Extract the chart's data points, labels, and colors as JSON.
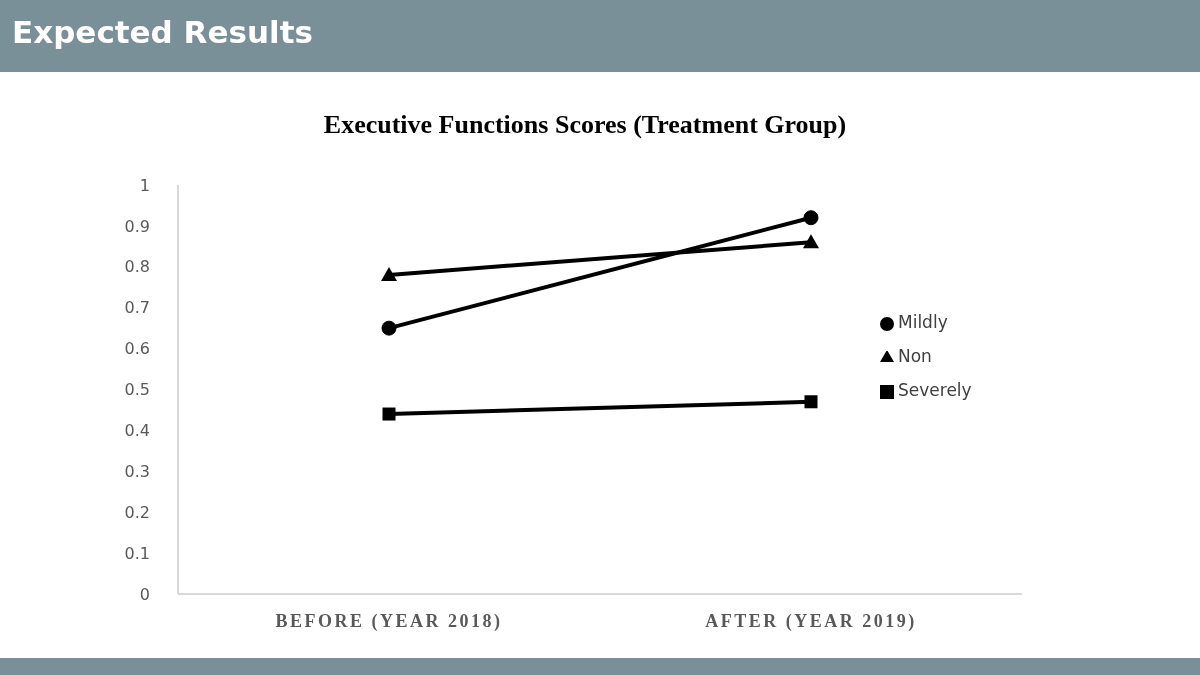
{
  "chart_data": {
    "type": "line",
    "title": "Executive Functions Scores (Treatment Group)",
    "annotations": [
      "Expected Results"
    ],
    "categories": [
      "BEFORE (YEAR 2018)",
      "AFTER (YEAR 2019)"
    ],
    "series": [
      {
        "name": "Mildly",
        "color": "#000000",
        "marker": "circle",
        "values": [
          0.65,
          0.92
        ]
      },
      {
        "name": "Severely",
        "color": "#000000",
        "marker": "square",
        "values": [
          0.44,
          0.47
        ]
      },
      {
        "name": "Non",
        "color": "#000000",
        "marker": "triangle",
        "values": [
          0.78,
          0.86
        ]
      }
    ],
    "ylim": [
      0,
      1
    ],
    "yticks": [
      0,
      0.1,
      0.2,
      0.3,
      0.4,
      0.5,
      0.6,
      0.7,
      0.8,
      0.9,
      1
    ],
    "grid": false,
    "legend": "right"
  }
}
